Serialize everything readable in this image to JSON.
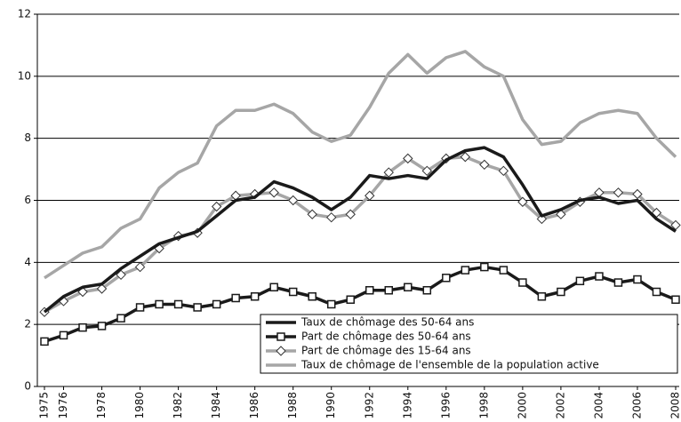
{
  "chart_data": {
    "type": "line",
    "x": [
      1975,
      1976,
      1977,
      1978,
      1979,
      1980,
      1981,
      1982,
      1983,
      1984,
      1985,
      1986,
      1987,
      1988,
      1989,
      1990,
      1991,
      1992,
      1993,
      1994,
      1995,
      1996,
      1997,
      1998,
      1999,
      2000,
      2001,
      2002,
      2003,
      2004,
      2005,
      2006,
      2007,
      2008
    ],
    "xlim": [
      1975,
      2008
    ],
    "xticks": [
      1975,
      1976,
      1978,
      1980,
      1982,
      1984,
      1986,
      1988,
      1990,
      1992,
      1994,
      1996,
      1998,
      2000,
      2002,
      2004,
      2006,
      2008
    ],
    "ylim": [
      0,
      12
    ],
    "yticks": [
      0,
      2,
      4,
      6,
      8,
      10,
      12
    ],
    "grid": true,
    "legend": "lower right",
    "series": [
      {
        "name": "Taux de chômage des 50-64 ans",
        "color": "#1a1a1a",
        "marker": "none",
        "values": [
          2.4,
          2.9,
          3.2,
          3.3,
          3.8,
          4.2,
          4.6,
          4.8,
          5.0,
          5.5,
          6.0,
          6.1,
          6.6,
          6.4,
          6.1,
          5.7,
          6.1,
          6.8,
          6.7,
          6.8,
          6.7,
          7.3,
          7.6,
          7.7,
          7.4,
          6.5,
          5.5,
          5.7,
          6.0,
          6.1,
          5.9,
          6.0,
          5.4,
          5.0
        ]
      },
      {
        "name": "Part de chômage des 50-64 ans",
        "color": "#1a1a1a",
        "marker": "square",
        "values": [
          1.45,
          1.65,
          1.9,
          1.95,
          2.2,
          2.55,
          2.65,
          2.65,
          2.55,
          2.65,
          2.85,
          2.9,
          3.2,
          3.05,
          2.9,
          2.65,
          2.8,
          3.1,
          3.1,
          3.2,
          3.1,
          3.5,
          3.75,
          3.85,
          3.75,
          3.35,
          2.9,
          3.05,
          3.4,
          3.55,
          3.35,
          3.45,
          3.05,
          2.8
        ]
      },
      {
        "name": "Part de chômage des 15-64 ans",
        "color": "#a6a6a6",
        "marker": "diamond",
        "values": [
          2.4,
          2.75,
          3.05,
          3.15,
          3.6,
          3.85,
          4.45,
          4.85,
          4.95,
          5.8,
          6.15,
          6.2,
          6.25,
          6.0,
          5.55,
          5.45,
          5.55,
          6.15,
          6.9,
          7.35,
          6.95,
          7.35,
          7.4,
          7.15,
          6.95,
          5.95,
          5.4,
          5.55,
          5.95,
          6.25,
          6.25,
          6.2,
          5.6,
          5.2
        ]
      },
      {
        "name": "Taux de chômage de l'ensemble de la population active",
        "color": "#a6a6a6",
        "marker": "none",
        "values": [
          3.5,
          3.9,
          4.3,
          4.5,
          5.1,
          5.4,
          6.4,
          6.9,
          7.2,
          8.4,
          8.9,
          8.9,
          9.1,
          8.8,
          8.2,
          7.9,
          8.1,
          9.0,
          10.1,
          10.7,
          10.1,
          10.6,
          10.8,
          10.3,
          10.0,
          8.6,
          7.8,
          7.9,
          8.5,
          8.8,
          8.9,
          8.8,
          8.0,
          7.4
        ]
      }
    ]
  }
}
